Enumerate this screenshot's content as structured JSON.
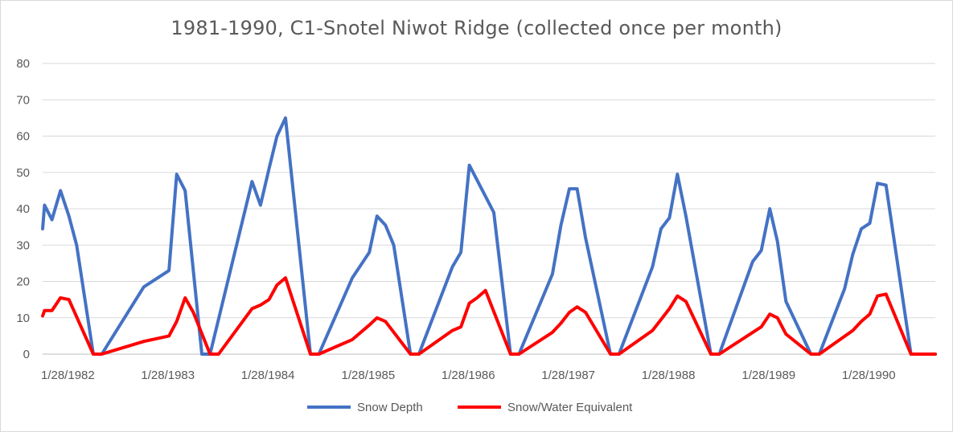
{
  "chart_data": {
    "type": "line",
    "title": "1981-1990, C1-Snotel Niwot Ridge (collected once per month)",
    "xlabel": "",
    "ylabel": "",
    "ylim": [
      0,
      80
    ],
    "y_ticks": [
      "0",
      "10",
      "20",
      "30",
      "40",
      "50",
      "60",
      "70",
      "80"
    ],
    "x_ticks": [
      "1/28/1982",
      "1/28/1983",
      "1/28/1984",
      "1/28/1985",
      "1/28/1986",
      "1/28/1987",
      "1/28/1988",
      "1/28/1989",
      "1/28/1990"
    ],
    "x_tick_dates": [
      "1982-01-28",
      "1983-01-28",
      "1984-01-28",
      "1985-01-28",
      "1986-01-28",
      "1987-01-28",
      "1988-01-28",
      "1989-01-28",
      "1990-01-28"
    ],
    "x_range": [
      "1981-10-28",
      "1990-09-28"
    ],
    "grid": "horizontal",
    "legend_position": "bottom",
    "series": [
      {
        "name": "Snow Depth",
        "color": "#4472C4",
        "points": [
          [
            "1981-10-28",
            34.5
          ],
          [
            "1981-11-04",
            41
          ],
          [
            "1981-12-01",
            37
          ],
          [
            "1982-01-01",
            45
          ],
          [
            "1982-02-01",
            38
          ],
          [
            "1982-03-01",
            30
          ],
          [
            "1982-05-01",
            0
          ],
          [
            "1982-06-01",
            0
          ],
          [
            "1982-11-01",
            18.5
          ],
          [
            "1983-02-01",
            23
          ],
          [
            "1983-03-01",
            49.5
          ],
          [
            "1983-04-01",
            45
          ],
          [
            "1983-06-01",
            0
          ],
          [
            "1983-07-01",
            0
          ],
          [
            "1983-12-01",
            47.5
          ],
          [
            "1984-01-01",
            41
          ],
          [
            "1984-02-01",
            51
          ],
          [
            "1984-03-01",
            60
          ],
          [
            "1984-04-01",
            65
          ],
          [
            "1984-07-01",
            0
          ],
          [
            "1984-08-01",
            0
          ],
          [
            "1984-12-01",
            21
          ],
          [
            "1985-02-01",
            28
          ],
          [
            "1985-03-01",
            38
          ],
          [
            "1985-04-01",
            35.5
          ],
          [
            "1985-05-01",
            30
          ],
          [
            "1985-07-01",
            0
          ],
          [
            "1985-08-01",
            0
          ],
          [
            "1985-12-01",
            24
          ],
          [
            "1986-01-01",
            28
          ],
          [
            "1986-02-01",
            52
          ],
          [
            "1986-05-01",
            39
          ],
          [
            "1986-07-01",
            0
          ],
          [
            "1986-08-01",
            0
          ],
          [
            "1986-12-01",
            22
          ],
          [
            "1987-01-01",
            35.5
          ],
          [
            "1987-02-01",
            45.5
          ],
          [
            "1987-03-01",
            45.5
          ],
          [
            "1987-04-01",
            32
          ],
          [
            "1987-07-01",
            0
          ],
          [
            "1987-08-01",
            0
          ],
          [
            "1987-12-01",
            24
          ],
          [
            "1988-01-01",
            34.5
          ],
          [
            "1988-02-01",
            37.5
          ],
          [
            "1988-03-01",
            49.5
          ],
          [
            "1988-04-01",
            38
          ],
          [
            "1988-07-01",
            0
          ],
          [
            "1988-08-01",
            0
          ],
          [
            "1988-12-01",
            25.5
          ],
          [
            "1989-01-01",
            28.5
          ],
          [
            "1989-02-01",
            40
          ],
          [
            "1989-03-01",
            31
          ],
          [
            "1989-04-01",
            14.5
          ],
          [
            "1989-07-01",
            0
          ],
          [
            "1989-08-01",
            0
          ],
          [
            "1989-11-01",
            18
          ],
          [
            "1989-12-01",
            27.5
          ],
          [
            "1990-01-01",
            34.5
          ],
          [
            "1990-02-01",
            36
          ],
          [
            "1990-03-01",
            47
          ],
          [
            "1990-04-01",
            46.5
          ],
          [
            "1990-07-01",
            0
          ],
          [
            "1990-09-28",
            0
          ]
        ]
      },
      {
        "name": "Snow/Water Equivalent",
        "color": "#FF0000",
        "points": [
          [
            "1981-10-28",
            10.5
          ],
          [
            "1981-11-04",
            12
          ],
          [
            "1981-12-01",
            12
          ],
          [
            "1982-01-01",
            15.5
          ],
          [
            "1982-02-01",
            15
          ],
          [
            "1982-05-01",
            0
          ],
          [
            "1982-06-01",
            0
          ],
          [
            "1982-11-01",
            3.5
          ],
          [
            "1983-02-01",
            5
          ],
          [
            "1983-03-01",
            9
          ],
          [
            "1983-04-01",
            15.5
          ],
          [
            "1983-05-01",
            11.5
          ],
          [
            "1983-07-01",
            0
          ],
          [
            "1983-08-01",
            0
          ],
          [
            "1983-12-01",
            12.5
          ],
          [
            "1984-01-01",
            13.5
          ],
          [
            "1984-02-01",
            15
          ],
          [
            "1984-03-01",
            19
          ],
          [
            "1984-04-01",
            21
          ],
          [
            "1984-07-01",
            0
          ],
          [
            "1984-08-01",
            0
          ],
          [
            "1984-12-01",
            4
          ],
          [
            "1985-02-01",
            8
          ],
          [
            "1985-03-01",
            10
          ],
          [
            "1985-04-01",
            9
          ],
          [
            "1985-07-01",
            0
          ],
          [
            "1985-08-01",
            0
          ],
          [
            "1985-12-01",
            6.5
          ],
          [
            "1986-01-01",
            7.5
          ],
          [
            "1986-02-01",
            14
          ],
          [
            "1986-03-01",
            15.5
          ],
          [
            "1986-04-01",
            17.5
          ],
          [
            "1986-07-01",
            0
          ],
          [
            "1986-08-01",
            0
          ],
          [
            "1986-12-01",
            6
          ],
          [
            "1987-01-01",
            8.5
          ],
          [
            "1987-02-01",
            11.5
          ],
          [
            "1987-03-01",
            13
          ],
          [
            "1987-04-01",
            11.5
          ],
          [
            "1987-07-01",
            0
          ],
          [
            "1987-08-01",
            0
          ],
          [
            "1987-12-01",
            6.5
          ],
          [
            "1988-01-01",
            9.5
          ],
          [
            "1988-02-01",
            12.5
          ],
          [
            "1988-03-01",
            16
          ],
          [
            "1988-04-01",
            14.5
          ],
          [
            "1988-07-01",
            0
          ],
          [
            "1988-08-01",
            0
          ],
          [
            "1988-12-01",
            6
          ],
          [
            "1989-01-01",
            7.5
          ],
          [
            "1989-02-01",
            11
          ],
          [
            "1989-03-01",
            10
          ],
          [
            "1989-04-01",
            5.5
          ],
          [
            "1989-07-01",
            0
          ],
          [
            "1989-08-01",
            0
          ],
          [
            "1989-12-01",
            6.5
          ],
          [
            "1990-01-01",
            9
          ],
          [
            "1990-02-01",
            11
          ],
          [
            "1990-03-01",
            16
          ],
          [
            "1990-04-01",
            16.5
          ],
          [
            "1990-07-01",
            0
          ],
          [
            "1990-09-28",
            0
          ]
        ]
      }
    ]
  }
}
